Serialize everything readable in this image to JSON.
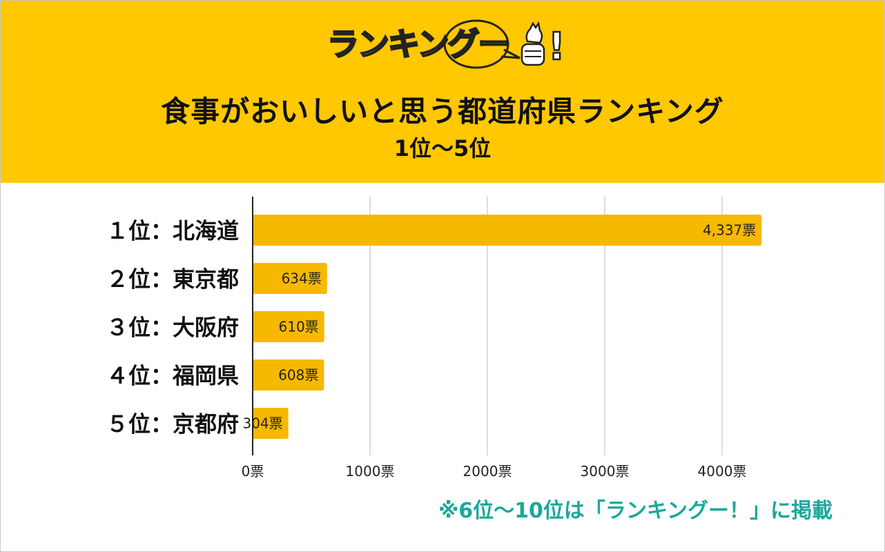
{
  "header": {
    "logo_text": "ランキングー!",
    "title": "食事がおいしいと思う都道府県ランキング",
    "subtitle": "1位～5位"
  },
  "note": "※6位～10位は「ランキングー！」に掲載",
  "colors": {
    "header_bg": "#FFC800",
    "bar": "#F7B800",
    "grid": "#d0d0d0",
    "note": "#1AA89A"
  },
  "chart_data": {
    "type": "bar",
    "orientation": "horizontal",
    "categories": [
      "１位：北海道",
      "２位：東京都",
      "３位：大阪府",
      "４位：福岡県",
      "５位：京都府"
    ],
    "values": [
      4337,
      634,
      610,
      608,
      304
    ],
    "value_labels": [
      "4,337票",
      "634票",
      "610票",
      "608票",
      "304票"
    ],
    "xlim": [
      0,
      4300
    ],
    "xticks": [
      0,
      1000,
      2000,
      3000,
      4000
    ],
    "xtick_labels": [
      "0票",
      "1000票",
      "2000票",
      "3000票",
      "4000票"
    ],
    "grid": true,
    "title": "食事がおいしいと思う都道府県ランキング",
    "subtitle": "1位～5位"
  }
}
